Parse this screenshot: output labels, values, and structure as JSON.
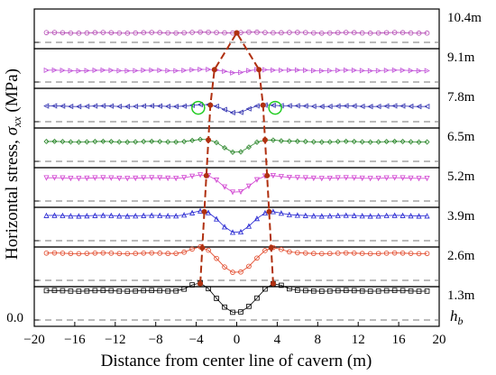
{
  "chart_data": {
    "type": "line",
    "layout": "stacked-panels",
    "ylabel_main": "Horizontal stress, ",
    "ylabel_sym": "σ",
    "ylabel_sub": "xx",
    "ylabel_unit": " (MPa)",
    "xlabel": "Distance from center line of cavern (m)",
    "xlim": [
      -20,
      20
    ],
    "xticks": [
      -20,
      -16,
      -12,
      -8,
      -4,
      0,
      4,
      8,
      12,
      16,
      20
    ],
    "yzero_label": "0.0",
    "hb_label": "h",
    "hb_sub": "b",
    "series": [
      {
        "name": "10.4m",
        "color": "#b040b0",
        "marker": "circle",
        "base": 0.55,
        "peak": 0.05,
        "dip": 0.05,
        "ap": 0,
        "aw": 5
      },
      {
        "name": "9.1m",
        "color": "#c050d8",
        "marker": "triangle-right",
        "base": 0.52,
        "peak": 0.08,
        "dip": 0.25,
        "ap": 2.2,
        "aw": 2.5
      },
      {
        "name": "7.8m",
        "color": "#3030b0",
        "marker": "triangle-left",
        "base": 0.5,
        "peak": 0.14,
        "dip": 0.6,
        "ap": 2.6,
        "aw": 1.9
      },
      {
        "name": "6.5m",
        "color": "#208020",
        "marker": "diamond",
        "base": 0.5,
        "peak": 0.22,
        "dip": 0.95,
        "ap": 2.8,
        "aw": 1.7
      },
      {
        "name": "5.2m",
        "color": "#d040d0",
        "marker": "triangle-down",
        "base": 0.48,
        "peak": 0.3,
        "dip": 1.25,
        "ap": 3.0,
        "aw": 1.6
      },
      {
        "name": "3.9m",
        "color": "#2020d0",
        "marker": "triangle-up",
        "base": 0.45,
        "peak": 0.45,
        "dip": 1.45,
        "ap": 3.2,
        "aw": 1.5
      },
      {
        "name": "2.6m",
        "color": "#e04020",
        "marker": "circle",
        "base": 0.42,
        "peak": 0.6,
        "dip": 1.65,
        "ap": 3.4,
        "aw": 1.4
      },
      {
        "name": "1.3m",
        "color": "#000000",
        "marker": "square",
        "base": 0.4,
        "peak": 0.75,
        "dip": 1.85,
        "ap": 3.6,
        "aw": 1.3
      }
    ],
    "boundary_color": "#b03010",
    "highlight_color": "#22cc22"
  }
}
